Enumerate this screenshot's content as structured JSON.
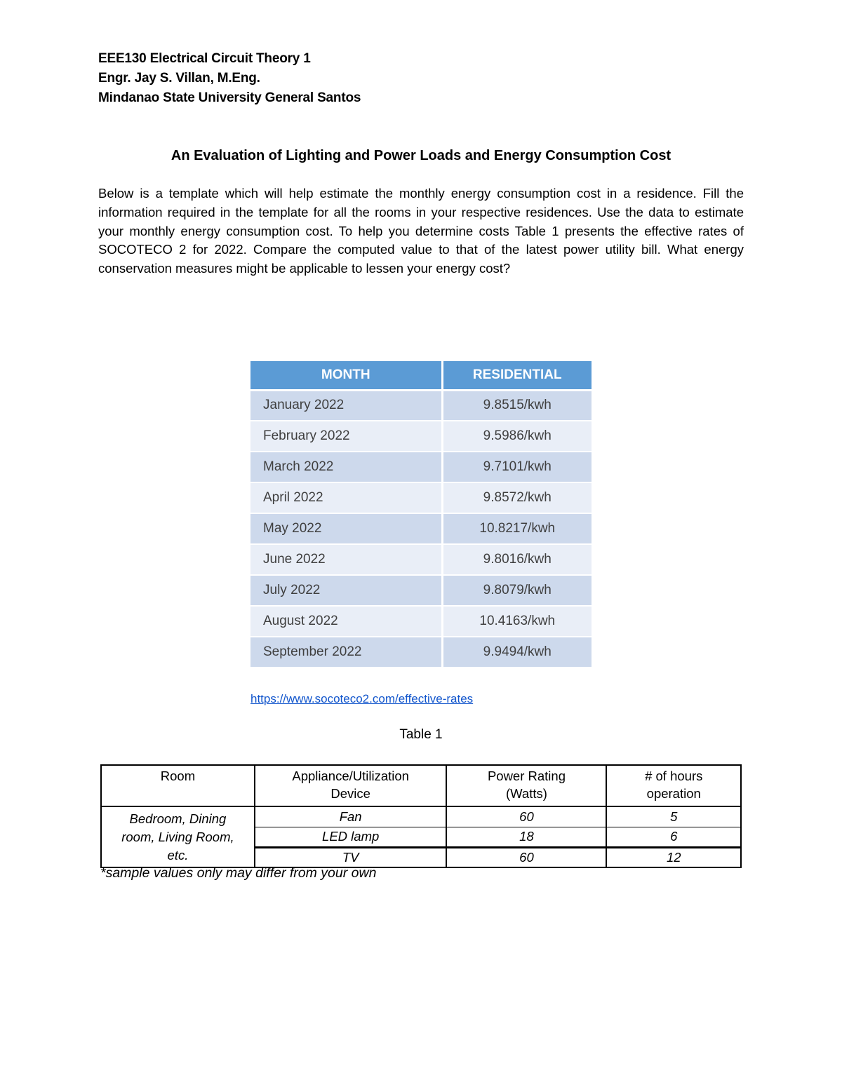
{
  "course_header": {
    "line1": "EEE130 Electrical Circuit Theory 1",
    "line2": "Engr. Jay S. Villan, M.Eng.",
    "line3": "Mindanao State University General Santos"
  },
  "title": "An Evaluation of Lighting and Power Loads and Energy Consumption Cost",
  "intro_paragraph": "Below is a template which will help estimate the monthly energy consumption cost in a residence.  Fill the information required in the template for all the rooms in your respective residences. Use the data to estimate your monthly energy consumption cost. To help you determine costs Table 1 presents the effective rates of SOCOTECO 2 for 2022. Compare the computed value to that of the latest power utility bill. What energy conservation measures might be applicable to lessen your energy cost?",
  "rates_table": {
    "headers": [
      "MONTH",
      "RESIDENTIAL"
    ],
    "rows": [
      {
        "month": "January 2022",
        "rate": "9.8515/kwh"
      },
      {
        "month": "February 2022",
        "rate": "9.5986/kwh"
      },
      {
        "month": "March 2022",
        "rate": "9.7101/kwh"
      },
      {
        "month": "April 2022",
        "rate": "9.8572/kwh"
      },
      {
        "month": "May 2022",
        "rate": "10.8217/kwh"
      },
      {
        "month": "June 2022",
        "rate": "9.8016/kwh"
      },
      {
        "month": "July 2022",
        "rate": "9.8079/kwh"
      },
      {
        "month": "August 2022",
        "rate": "10.4163/kwh"
      },
      {
        "month": "September 2022",
        "rate": "9.9494/kwh"
      }
    ]
  },
  "source_link": "https://www.socoteco2.com/effective-rates",
  "table_caption": "Table 1",
  "loads_table": {
    "headers": [
      "Room",
      "Appliance/Utilization\nDevice",
      "Power Rating\n(Watts)",
      "# of hours\noperation"
    ],
    "room_group": "Bedroom, Dining room, Living Room, etc.",
    "rows": [
      {
        "device": "Fan",
        "watts": "60",
        "hours": "5"
      },
      {
        "device": "LED lamp",
        "watts": "18",
        "hours": "6"
      },
      {
        "device": "TV",
        "watts": "60",
        "hours": "12"
      }
    ]
  },
  "footnote": "*sample values only may differ from your own",
  "colors": {
    "table_header_bg": "#5b9bd5",
    "table_header_text": "#ffffff",
    "row_dark": "#cdd9ec",
    "row_light": "#e9eef7",
    "link_color": "#1155cc",
    "rates_text": "#3f3f3f"
  }
}
